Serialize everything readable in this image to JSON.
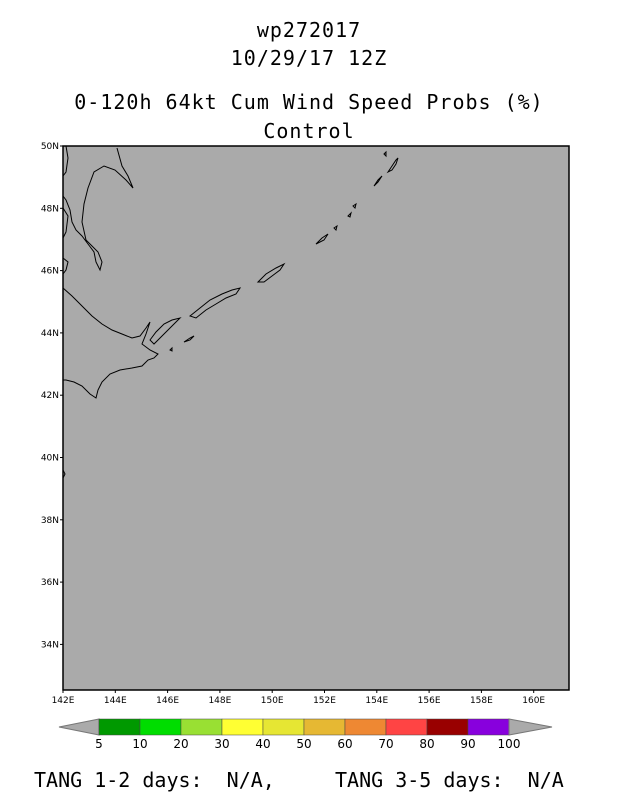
{
  "header": {
    "storm_id": "wp272017",
    "datetime": "10/29/17 12Z",
    "product": "0-120h 64kt Cum Wind Speed Probs (%)",
    "run": "Control"
  },
  "map": {
    "background_color": "#aaaaaa",
    "lat_labels": [
      "50N",
      "48N",
      "46N",
      "44N",
      "42N",
      "40N",
      "38N",
      "36N",
      "34N"
    ],
    "lon_labels": [
      "142E",
      "144E",
      "146E",
      "148E",
      "150E",
      "152E",
      "154E",
      "156E",
      "158E",
      "160E"
    ]
  },
  "colorbar": {
    "colors": [
      "#009900",
      "#00dd00",
      "#99e033",
      "#ffff33",
      "#e6e633",
      "#e6b833",
      "#ee8833",
      "#ff4444",
      "#990000",
      "#8800dd"
    ],
    "labels": [
      "5",
      "10",
      "20",
      "30",
      "40",
      "50",
      "60",
      "70",
      "80",
      "90",
      "100"
    ]
  },
  "footer": {
    "tang_1_2": "TANG 1-2 days:  N/A,",
    "tang_3_5": "TANG 3-5 days:  N/A"
  }
}
